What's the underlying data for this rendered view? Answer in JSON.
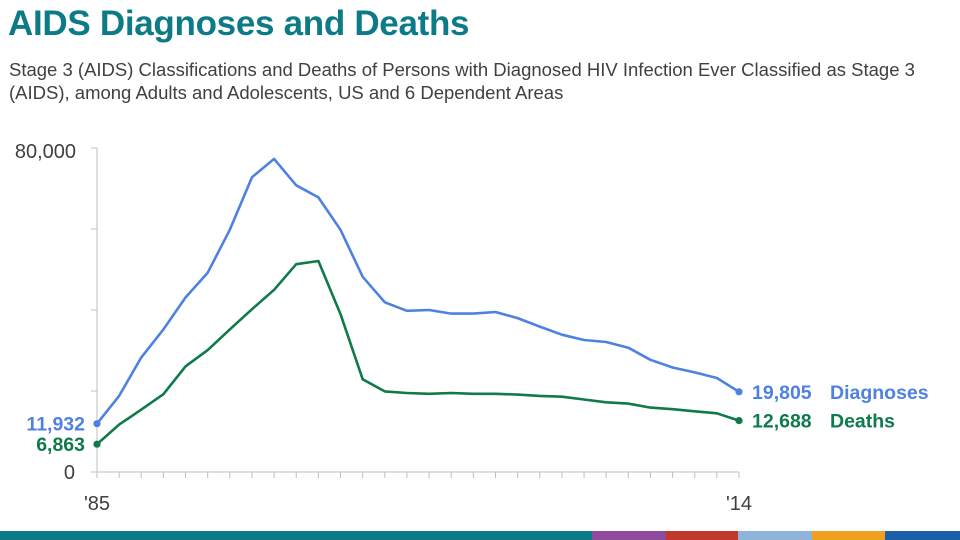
{
  "title": "AIDS Diagnoses and Deaths",
  "subtitle": "Stage 3 (AIDS) Classifications and Deaths of Persons with Diagnosed HIV Infection Ever Classified as Stage 3 (AIDS), among Adults and Adolescents, US and 6 Dependent Areas",
  "colors": {
    "title": "#0d7a87",
    "diagnoses": "#4f81e0",
    "deaths": "#0f7a4a",
    "axis": "#bfbfbf",
    "text": "#404040"
  },
  "footer_colors": [
    "#0d7a87",
    "#8e4b9e",
    "#c0392b",
    "#8eb4d9",
    "#f0a020",
    "#1a5fa8"
  ],
  "chart_data": {
    "type": "line",
    "x": [
      1985,
      1986,
      1987,
      1988,
      1989,
      1990,
      1991,
      1992,
      1993,
      1994,
      1995,
      1996,
      1997,
      1998,
      1999,
      2000,
      2001,
      2002,
      2003,
      2004,
      2005,
      2006,
      2007,
      2008,
      2009,
      2010,
      2011,
      2012,
      2013,
      2014
    ],
    "ylim": [
      0,
      80000
    ],
    "y_tick_labels": [
      "0",
      "80,000"
    ],
    "x_tick_labels": [
      "'85",
      "'14"
    ],
    "series": [
      {
        "name": "Diagnoses",
        "values": [
          11932,
          18800,
          28300,
          35200,
          43100,
          49200,
          59800,
          72800,
          77300,
          70800,
          67800,
          59800,
          48200,
          41900,
          39800,
          40000,
          39100,
          39100,
          39500,
          38000,
          35900,
          33900,
          32600,
          32100,
          30700,
          27700,
          25800,
          24600,
          23200,
          19805
        ],
        "end_label": "19,805",
        "start_label": "11,932"
      },
      {
        "name": "Deaths",
        "values": [
          6863,
          11700,
          15400,
          19200,
          26100,
          30100,
          35200,
          40200,
          45000,
          51300,
          52100,
          39000,
          22900,
          19900,
          19500,
          19300,
          19500,
          19300,
          19300,
          19100,
          18800,
          18600,
          17900,
          17200,
          16900,
          15900,
          15500,
          15000,
          14500,
          12688
        ],
        "end_label": "12,688",
        "start_label": "6,863"
      }
    ]
  }
}
